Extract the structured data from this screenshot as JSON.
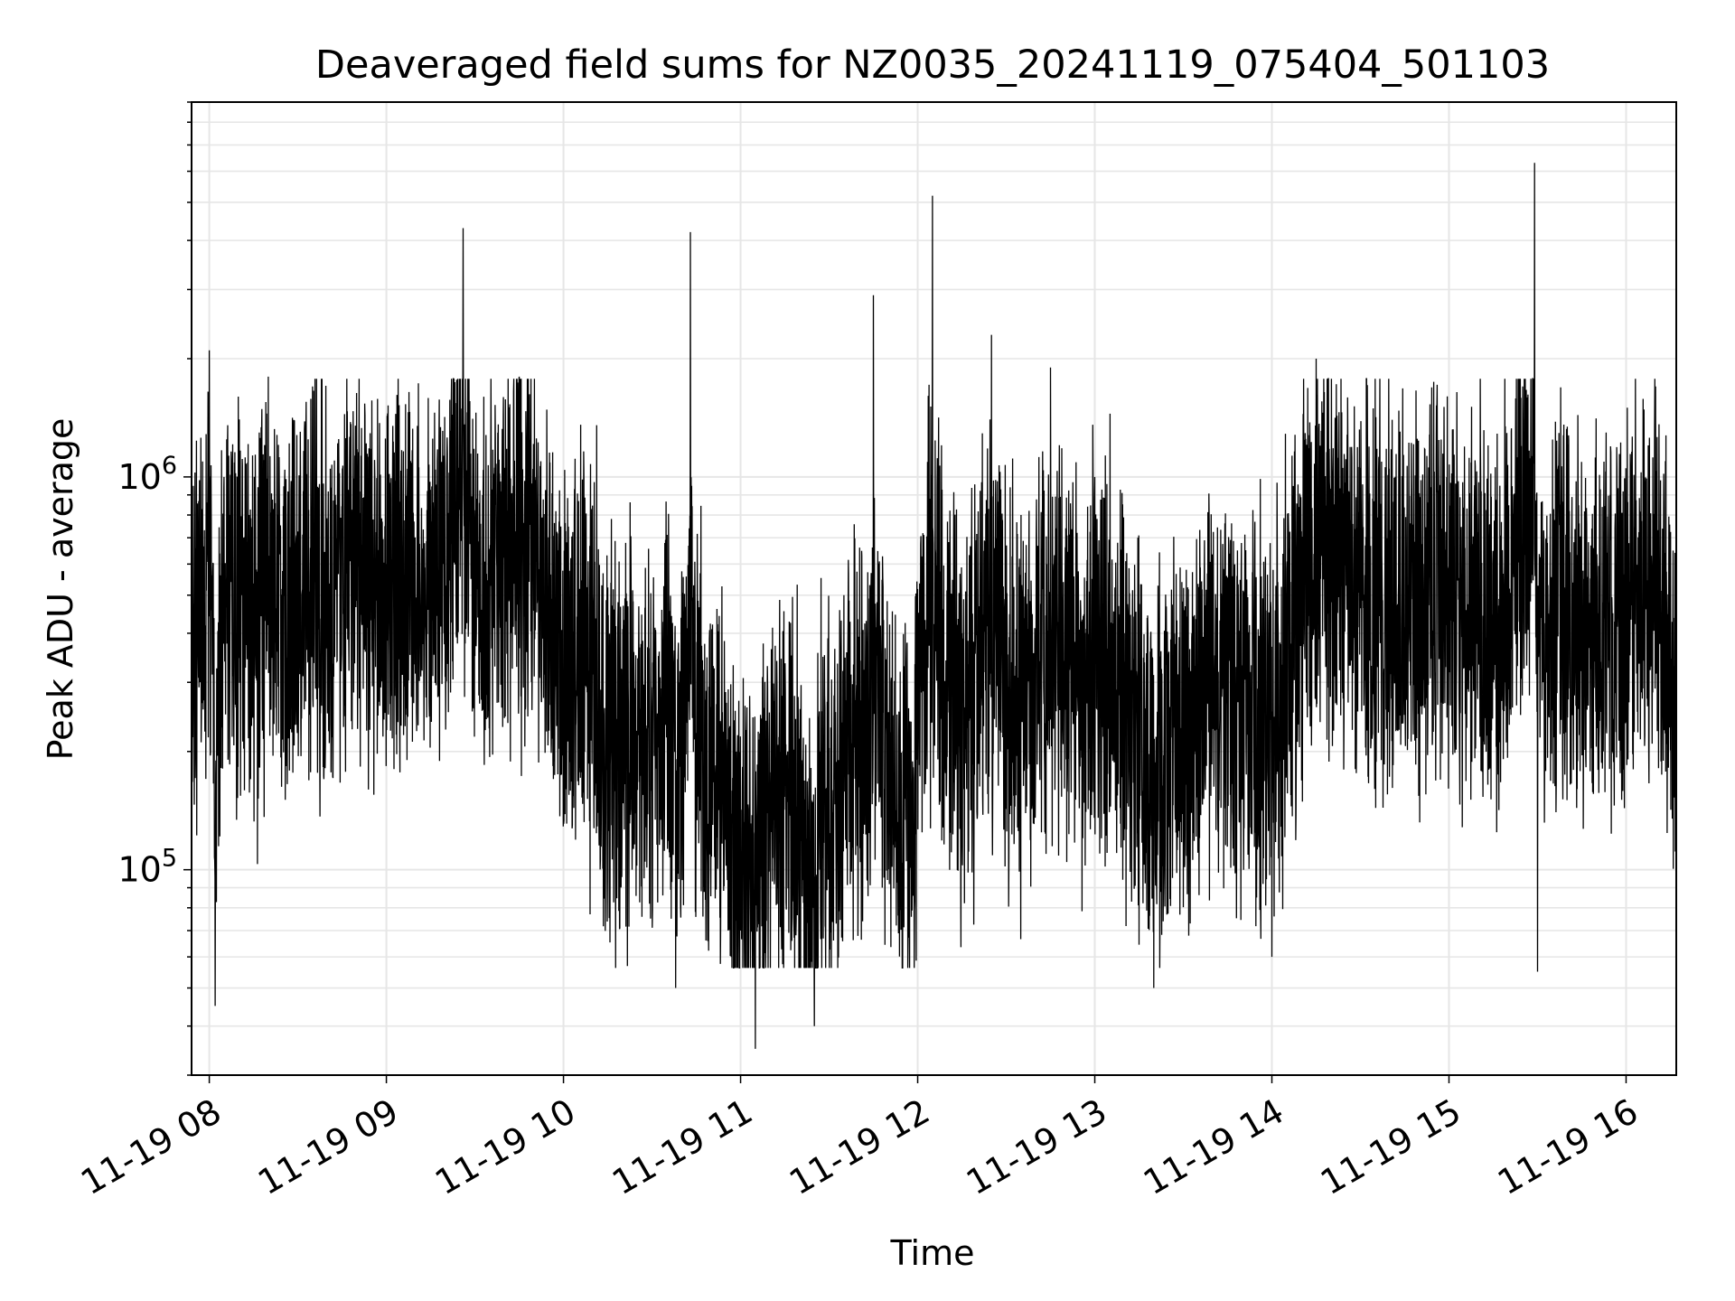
{
  "chart_data": {
    "type": "line",
    "title": "Deaveraged field sums for NZ0035_20241119_075404_501103",
    "xlabel": "Time",
    "ylabel": "Peak ADU - average",
    "yscale": "log",
    "ylim": [
      30000,
      9000000
    ],
    "xlim": [
      "2024-11-19T07:54",
      "2024-11-19T16:17"
    ],
    "grid": true,
    "line_color": "#000000",
    "x_ticks": [
      "11-19 08",
      "11-19 09",
      "11-19 10",
      "11-19 11",
      "11-19 12",
      "11-19 13",
      "11-19 14",
      "11-19 15",
      "11-19 16"
    ],
    "y_ticks": [
      {
        "value": 100000,
        "base": "10",
        "exp": "5"
      },
      {
        "value": 1000000,
        "base": "10",
        "exp": "6"
      }
    ],
    "series": [
      {
        "x": [
          "2024-11-19T07:54",
          "2024-11-19T08:00",
          "2024-11-19T08:02",
          "2024-11-19T08:05",
          "2024-11-19T08:10",
          "2024-11-19T08:15",
          "2024-11-19T08:20",
          "2024-11-19T08:25",
          "2024-11-19T08:30",
          "2024-11-19T08:35",
          "2024-11-19T08:40",
          "2024-11-19T08:45",
          "2024-11-19T08:50",
          "2024-11-19T09:00",
          "2024-11-19T09:15",
          "2024-11-19T09:26",
          "2024-11-19T09:30",
          "2024-11-19T09:45",
          "2024-11-19T10:00",
          "2024-11-19T10:20",
          "2024-11-19T10:30",
          "2024-11-19T10:35",
          "2024-11-19T10:38",
          "2024-11-19T10:43",
          "2024-11-19T10:47",
          "2024-11-19T10:55",
          "2024-11-19T11:00",
          "2024-11-19T11:05",
          "2024-11-19T11:10",
          "2024-11-19T11:16",
          "2024-11-19T11:25",
          "2024-11-19T11:27",
          "2024-11-19T11:35",
          "2024-11-19T11:45",
          "2024-11-19T11:55",
          "2024-11-19T12:05",
          "2024-11-19T12:15",
          "2024-11-19T12:25",
          "2024-11-19T12:35",
          "2024-11-19T12:45",
          "2024-11-19T13:00",
          "2024-11-19T13:10",
          "2024-11-19T13:20",
          "2024-11-19T13:40",
          "2024-11-19T14:00",
          "2024-11-19T14:06",
          "2024-11-19T14:15",
          "2024-11-19T14:30",
          "2024-11-19T14:45",
          "2024-11-19T15:00",
          "2024-11-19T15:15",
          "2024-11-19T15:25",
          "2024-11-19T15:29",
          "2024-11-19T15:30",
          "2024-11-19T15:35",
          "2024-11-19T15:45",
          "2024-11-19T16:00",
          "2024-11-19T16:10",
          "2024-11-19T16:17"
        ],
        "values": [
          700000,
          2100000,
          45000,
          1000000,
          700000,
          500000,
          1800000,
          300000,
          600000,
          1700000,
          250000,
          800000,
          700000,
          600000,
          450000,
          4300000,
          350000,
          1800000,
          200000,
          150000,
          150000,
          600000,
          50000,
          4200000,
          200000,
          120000,
          70000,
          35000,
          150000,
          200000,
          40000,
          200000,
          500000,
          2900000,
          200000,
          5200000,
          400000,
          2300000,
          800000,
          1900000,
          1000000,
          400000,
          50000,
          300000,
          60000,
          200000,
          2000000,
          500000,
          300000,
          400000,
          300000,
          1700000,
          6300000,
          55000,
          400000,
          300000,
          600000,
          1700000,
          150000
        ]
      }
    ]
  }
}
